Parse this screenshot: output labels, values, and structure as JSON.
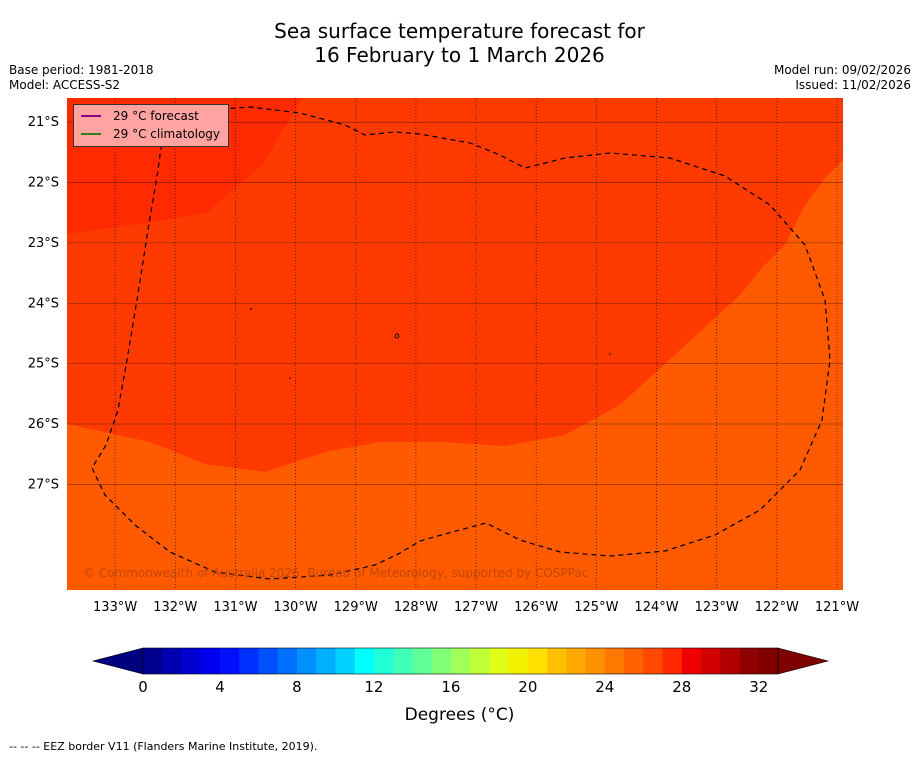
{
  "title": {
    "line1": "Sea surface temperature forecast for",
    "line2": "16 February to 1 March 2026"
  },
  "meta": {
    "base_period": "Base period: 1981-2018",
    "model": "Model: ACCESS-S2",
    "model_run": "Model run: 09/02/2026",
    "issued": "Issued: 11/02/2026"
  },
  "map": {
    "lon_range": [
      -133.8,
      -120.9
    ],
    "lat_range": [
      -28.75,
      -20.6
    ],
    "lat_ticks": [
      {
        "value": -21,
        "label": "21°S"
      },
      {
        "value": -22,
        "label": "22°S"
      },
      {
        "value": -23,
        "label": "23°S"
      },
      {
        "value": -24,
        "label": "24°S"
      },
      {
        "value": -25,
        "label": "25°S"
      },
      {
        "value": -26,
        "label": "26°S"
      },
      {
        "value": -27,
        "label": "27°S"
      }
    ],
    "lon_ticks": [
      {
        "value": -133,
        "label": "133°W"
      },
      {
        "value": -132,
        "label": "132°W"
      },
      {
        "value": -131,
        "label": "131°W"
      },
      {
        "value": -130,
        "label": "130°W"
      },
      {
        "value": -129,
        "label": "129°W"
      },
      {
        "value": -128,
        "label": "128°W"
      },
      {
        "value": -127,
        "label": "127°W"
      },
      {
        "value": -126,
        "label": "126°W"
      },
      {
        "value": -125,
        "label": "125°W"
      },
      {
        "value": -124,
        "label": "124°W"
      },
      {
        "value": -123,
        "label": "123°W"
      },
      {
        "value": -122,
        "label": "122°W"
      },
      {
        "value": -121,
        "label": "121°W"
      }
    ],
    "colors": {
      "sst_28_29": "#ff5a00",
      "sst_29_30": "#ff3a00",
      "sst_30_31": "#ff2a00",
      "eez": "#000000",
      "grid": "#000000"
    },
    "legend": {
      "forecast_label": "29 °C  forecast",
      "forecast_color": "#8b0088",
      "climatology_label": "29 °C  climatology",
      "climatology_color": "#2e7d1e"
    },
    "copyright": "© Commonwealth of Australia 2026, Bureau of Meteorology, supported by COSPPac"
  },
  "colorbar": {
    "min": 0,
    "max": 33,
    "step": 1,
    "colors": [
      "#00008f",
      "#0000b0",
      "#0000d0",
      "#0000f0",
      "#0010ff",
      "#0030ff",
      "#0050ff",
      "#0070ff",
      "#0090ff",
      "#00b0ff",
      "#00d0ff",
      "#00ffff",
      "#20ffd8",
      "#40ffb8",
      "#60ff98",
      "#80ff78",
      "#a0ff58",
      "#c0ff38",
      "#e0ff18",
      "#f0f000",
      "#ffe000",
      "#ffc000",
      "#ffa800",
      "#ff9000",
      "#ff7800",
      "#ff6000",
      "#ff4800",
      "#ff2800",
      "#f00000",
      "#d00000",
      "#b00000",
      "#900000",
      "#800000"
    ],
    "under_color": "#000080",
    "over_color": "#800000",
    "tick_labels": [
      "0",
      "4",
      "8",
      "12",
      "16",
      "20",
      "24",
      "28",
      "32"
    ],
    "label": "Degrees (°C)"
  },
  "footnote": "--  --  -- EEZ border V11 (Flanders Marine Institute, 2019)."
}
